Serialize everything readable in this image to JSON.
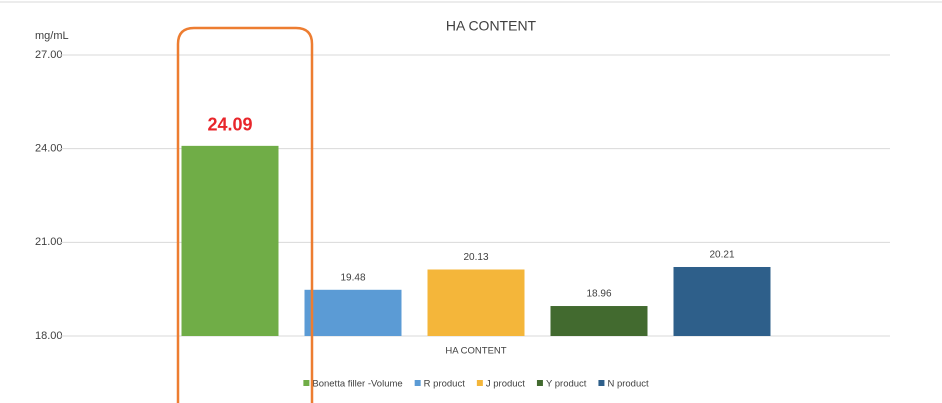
{
  "chart_data": {
    "type": "bar",
    "title": "HA CONTENT",
    "y_label": "mg/mL",
    "categories": [
      "HA CONTENT"
    ],
    "series": [
      {
        "name": "Bonetta filler -Volume",
        "color": "#70ad47",
        "values": [
          24.09
        ],
        "label_color": "#e8262b"
      },
      {
        "name": "R product",
        "color": "#5b9bd5",
        "values": [
          19.48
        ]
      },
      {
        "name": "J product",
        "color": "#f4b63a",
        "values": [
          20.13
        ]
      },
      {
        "name": "Y product",
        "color": "#426a2f",
        "values": [
          18.96
        ]
      },
      {
        "name": "N product",
        "color": "#2e5f8a",
        "values": [
          20.21
        ]
      }
    ],
    "ylim": [
      18,
      27
    ],
    "yticks": [
      {
        "value": 18,
        "label": "18.00"
      },
      {
        "value": 21,
        "label": "21.00"
      },
      {
        "value": 24,
        "label": "24.00"
      },
      {
        "value": 27,
        "label": "27.00"
      }
    ],
    "grid": true,
    "legend": "bottom"
  }
}
